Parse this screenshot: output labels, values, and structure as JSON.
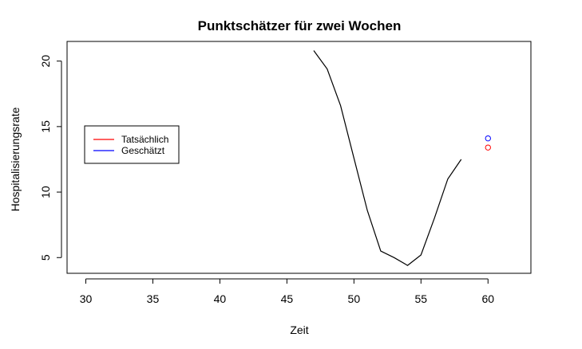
{
  "chart_data": {
    "type": "line",
    "title": "Punktschätzer für zwei Wochen",
    "xlabel": "Zeit",
    "ylabel": "Hospitalisierungsrate",
    "xlim": [
      28.6,
      63.2
    ],
    "ylim": [
      3.8,
      21.5
    ],
    "xticks": [
      30,
      35,
      40,
      45,
      50,
      55,
      60
    ],
    "yticks": [
      5,
      10,
      15,
      20
    ],
    "grid": false,
    "legend_position": "left",
    "legend": [
      {
        "label": "Tatsächlich",
        "color": "#ff0000"
      },
      {
        "label": "Geschätzt",
        "color": "#0000ff"
      }
    ],
    "series": [
      {
        "color": "#000000",
        "style": "line",
        "x": [
          47,
          48,
          49,
          50,
          51,
          52,
          53,
          54,
          55,
          56,
          57,
          58
        ],
        "y": [
          20.8,
          19.4,
          16.6,
          12.6,
          8.6,
          5.5,
          5.0,
          4.4,
          5.2,
          8.0,
          11.0,
          12.5
        ]
      },
      {
        "name": "Tatsächlich",
        "color": "#ff0000",
        "style": "point",
        "x": [
          60
        ],
        "y": [
          13.4
        ]
      },
      {
        "name": "Geschätzt",
        "color": "#0000ff",
        "style": "point",
        "x": [
          60
        ],
        "y": [
          14.1
        ]
      }
    ]
  }
}
